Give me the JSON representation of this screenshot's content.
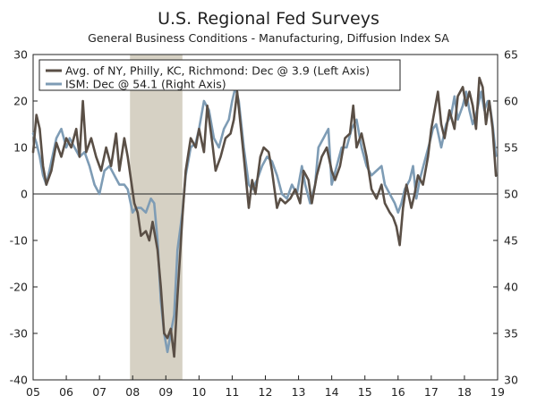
{
  "chart_data": {
    "type": "line",
    "title": "U.S. Regional Fed Surveys",
    "subtitle": "General Business Conditions - Manufacturing, Diffusion Index SA",
    "left_axis": {
      "ylim": [
        -40,
        30
      ],
      "ticks": [
        "30",
        "20",
        "10",
        "0",
        "-10",
        "-20",
        "-30",
        "-40"
      ],
      "tick_values": [
        30,
        20,
        10,
        0,
        -10,
        -20,
        -30,
        -40
      ]
    },
    "right_axis": {
      "ylim": [
        30,
        65
      ],
      "ticks": [
        "65",
        "60",
        "55",
        "50",
        "45",
        "40",
        "35",
        "30"
      ],
      "tick_values": [
        65,
        60,
        55,
        50,
        45,
        40,
        35,
        30
      ]
    },
    "x_axis": {
      "range": [
        2005,
        2019
      ],
      "tick_labels": [
        "05",
        "06",
        "07",
        "08",
        "09",
        "10",
        "11",
        "12",
        "13",
        "14",
        "15",
        "16",
        "17",
        "18",
        "19"
      ],
      "tick_values": [
        2005,
        2006,
        2007,
        2008,
        2009,
        2010,
        2011,
        2012,
        2013,
        2014,
        2015,
        2016,
        2017,
        2018,
        2019
      ]
    },
    "zero_line": 0,
    "recession": {
      "start": 2007.92,
      "end": 2009.5,
      "color": "#d6d1c4"
    },
    "legend_position": "top-left",
    "series": [
      {
        "name": "Avg. of NY, Philly, KC, Richmond: Dec @ 3.9  (Left Axis)",
        "axis": "left",
        "color": "#5a4f46",
        "points": [
          [
            2005.0,
            9
          ],
          [
            2005.1,
            17
          ],
          [
            2005.2,
            14
          ],
          [
            2005.3,
            6
          ],
          [
            2005.4,
            2
          ],
          [
            2005.55,
            5
          ],
          [
            2005.7,
            11
          ],
          [
            2005.85,
            8
          ],
          [
            2006.0,
            12
          ],
          [
            2006.15,
            10
          ],
          [
            2006.3,
            14
          ],
          [
            2006.4,
            8
          ],
          [
            2006.5,
            20
          ],
          [
            2006.6,
            9
          ],
          [
            2006.75,
            12
          ],
          [
            2006.9,
            8
          ],
          [
            2007.05,
            5
          ],
          [
            2007.2,
            10
          ],
          [
            2007.35,
            6
          ],
          [
            2007.5,
            13
          ],
          [
            2007.6,
            5
          ],
          [
            2007.75,
            12
          ],
          [
            2007.85,
            8
          ],
          [
            2007.95,
            3
          ],
          [
            2008.05,
            -2
          ],
          [
            2008.15,
            -4
          ],
          [
            2008.25,
            -9
          ],
          [
            2008.4,
            -8
          ],
          [
            2008.5,
            -10
          ],
          [
            2008.6,
            -6
          ],
          [
            2008.75,
            -12
          ],
          [
            2008.85,
            -20
          ],
          [
            2008.95,
            -30
          ],
          [
            2009.05,
            -31
          ],
          [
            2009.15,
            -29
          ],
          [
            2009.25,
            -35
          ],
          [
            2009.35,
            -22
          ],
          [
            2009.5,
            -5
          ],
          [
            2009.6,
            5
          ],
          [
            2009.75,
            12
          ],
          [
            2009.9,
            10
          ],
          [
            2010.0,
            14
          ],
          [
            2010.15,
            9
          ],
          [
            2010.25,
            19
          ],
          [
            2010.4,
            11
          ],
          [
            2010.5,
            5
          ],
          [
            2010.65,
            8
          ],
          [
            2010.8,
            12
          ],
          [
            2010.95,
            13
          ],
          [
            2011.05,
            16
          ],
          [
            2011.15,
            22
          ],
          [
            2011.25,
            15
          ],
          [
            2011.35,
            8
          ],
          [
            2011.5,
            -3
          ],
          [
            2011.6,
            3
          ],
          [
            2011.7,
            0
          ],
          [
            2011.85,
            8
          ],
          [
            2011.95,
            10
          ],
          [
            2012.1,
            9
          ],
          [
            2012.2,
            5
          ],
          [
            2012.35,
            -3
          ],
          [
            2012.45,
            -1
          ],
          [
            2012.6,
            -2
          ],
          [
            2012.75,
            -1
          ],
          [
            2012.9,
            1
          ],
          [
            2013.05,
            -2
          ],
          [
            2013.15,
            5
          ],
          [
            2013.3,
            3
          ],
          [
            2013.4,
            -2
          ],
          [
            2013.55,
            4
          ],
          [
            2013.7,
            8
          ],
          [
            2013.85,
            10
          ],
          [
            2014.0,
            5
          ],
          [
            2014.1,
            3
          ],
          [
            2014.25,
            6
          ],
          [
            2014.4,
            12
          ],
          [
            2014.55,
            13
          ],
          [
            2014.65,
            19
          ],
          [
            2014.75,
            10
          ],
          [
            2014.9,
            13
          ],
          [
            2015.05,
            8
          ],
          [
            2015.2,
            1
          ],
          [
            2015.35,
            -1
          ],
          [
            2015.5,
            2
          ],
          [
            2015.6,
            -2
          ],
          [
            2015.75,
            -4
          ],
          [
            2015.85,
            -5
          ],
          [
            2015.95,
            -7
          ],
          [
            2016.05,
            -11
          ],
          [
            2016.15,
            -3
          ],
          [
            2016.25,
            2
          ],
          [
            2016.4,
            -3
          ],
          [
            2016.5,
            0
          ],
          [
            2016.6,
            4
          ],
          [
            2016.75,
            2
          ],
          [
            2016.9,
            8
          ],
          [
            2017.0,
            14
          ],
          [
            2017.1,
            18
          ],
          [
            2017.2,
            22
          ],
          [
            2017.3,
            15
          ],
          [
            2017.4,
            12
          ],
          [
            2017.55,
            18
          ],
          [
            2017.7,
            14
          ],
          [
            2017.8,
            21
          ],
          [
            2017.95,
            23
          ],
          [
            2018.05,
            19
          ],
          [
            2018.15,
            22
          ],
          [
            2018.25,
            19
          ],
          [
            2018.35,
            14
          ],
          [
            2018.45,
            25
          ],
          [
            2018.55,
            23
          ],
          [
            2018.65,
            15
          ],
          [
            2018.75,
            20
          ],
          [
            2018.85,
            14
          ],
          [
            2018.95,
            3.9
          ]
        ]
      },
      {
        "name": "ISM: Dec @ 54.1  (Right Axis)",
        "axis": "right",
        "color": "#7e9cb5",
        "points": [
          [
            2005.0,
            56.5
          ],
          [
            2005.1,
            55.5
          ],
          [
            2005.2,
            54
          ],
          [
            2005.3,
            52
          ],
          [
            2005.4,
            51
          ],
          [
            2005.55,
            53.5
          ],
          [
            2005.7,
            56
          ],
          [
            2005.85,
            57
          ],
          [
            2006.0,
            55
          ],
          [
            2006.1,
            56
          ],
          [
            2006.25,
            55
          ],
          [
            2006.4,
            54
          ],
          [
            2006.55,
            54.5
          ],
          [
            2006.7,
            53
          ],
          [
            2006.85,
            51
          ],
          [
            2007.0,
            50
          ],
          [
            2007.15,
            52.5
          ],
          [
            2007.3,
            53
          ],
          [
            2007.45,
            52
          ],
          [
            2007.6,
            51
          ],
          [
            2007.75,
            51
          ],
          [
            2007.85,
            50.5
          ],
          [
            2008.0,
            48
          ],
          [
            2008.1,
            48.5
          ],
          [
            2008.25,
            48.5
          ],
          [
            2008.4,
            48
          ],
          [
            2008.55,
            49.5
          ],
          [
            2008.65,
            49
          ],
          [
            2008.75,
            45
          ],
          [
            2008.85,
            38.5
          ],
          [
            2008.95,
            35
          ],
          [
            2009.05,
            33
          ],
          [
            2009.15,
            35
          ],
          [
            2009.25,
            37
          ],
          [
            2009.35,
            44
          ],
          [
            2009.5,
            48
          ],
          [
            2009.6,
            52
          ],
          [
            2009.75,
            55
          ],
          [
            2009.9,
            55.5
          ],
          [
            2010.0,
            57
          ],
          [
            2010.15,
            60
          ],
          [
            2010.3,
            59
          ],
          [
            2010.45,
            56
          ],
          [
            2010.6,
            55
          ],
          [
            2010.75,
            57
          ],
          [
            2010.9,
            58
          ],
          [
            2011.0,
            60
          ],
          [
            2011.1,
            61.5
          ],
          [
            2011.2,
            60
          ],
          [
            2011.35,
            55
          ],
          [
            2011.5,
            51
          ],
          [
            2011.6,
            50.5
          ],
          [
            2011.75,
            51.5
          ],
          [
            2011.9,
            53
          ],
          [
            2012.05,
            54
          ],
          [
            2012.2,
            53.5
          ],
          [
            2012.35,
            52
          ],
          [
            2012.5,
            50
          ],
          [
            2012.65,
            49.5
          ],
          [
            2012.8,
            51
          ],
          [
            2012.95,
            50
          ],
          [
            2013.1,
            53
          ],
          [
            2013.2,
            51
          ],
          [
            2013.35,
            49
          ],
          [
            2013.5,
            51
          ],
          [
            2013.6,
            55
          ],
          [
            2013.75,
            56
          ],
          [
            2013.9,
            57
          ],
          [
            2014.0,
            51
          ],
          [
            2014.15,
            53
          ],
          [
            2014.3,
            55
          ],
          [
            2014.45,
            55
          ],
          [
            2014.6,
            57
          ],
          [
            2014.75,
            58
          ],
          [
            2014.9,
            55
          ],
          [
            2015.05,
            53
          ],
          [
            2015.2,
            52
          ],
          [
            2015.35,
            52.5
          ],
          [
            2015.5,
            53
          ],
          [
            2015.6,
            51
          ],
          [
            2015.75,
            50
          ],
          [
            2015.9,
            49
          ],
          [
            2016.0,
            48
          ],
          [
            2016.1,
            49
          ],
          [
            2016.2,
            50.5
          ],
          [
            2016.35,
            51.5
          ],
          [
            2016.45,
            53
          ],
          [
            2016.55,
            49.5
          ],
          [
            2016.65,
            51.5
          ],
          [
            2016.8,
            53.5
          ],
          [
            2016.95,
            55.5
          ],
          [
            2017.05,
            57
          ],
          [
            2017.15,
            57.5
          ],
          [
            2017.3,
            55
          ],
          [
            2017.45,
            57.5
          ],
          [
            2017.6,
            58.5
          ],
          [
            2017.7,
            60.5
          ],
          [
            2017.8,
            58
          ],
          [
            2017.95,
            59.5
          ],
          [
            2018.05,
            61
          ],
          [
            2018.15,
            59
          ],
          [
            2018.25,
            57.5
          ],
          [
            2018.35,
            58.5
          ],
          [
            2018.5,
            61
          ],
          [
            2018.6,
            59
          ],
          [
            2018.7,
            60
          ],
          [
            2018.75,
            60
          ],
          [
            2018.85,
            57.5
          ],
          [
            2018.95,
            54.1
          ]
        ]
      }
    ]
  }
}
